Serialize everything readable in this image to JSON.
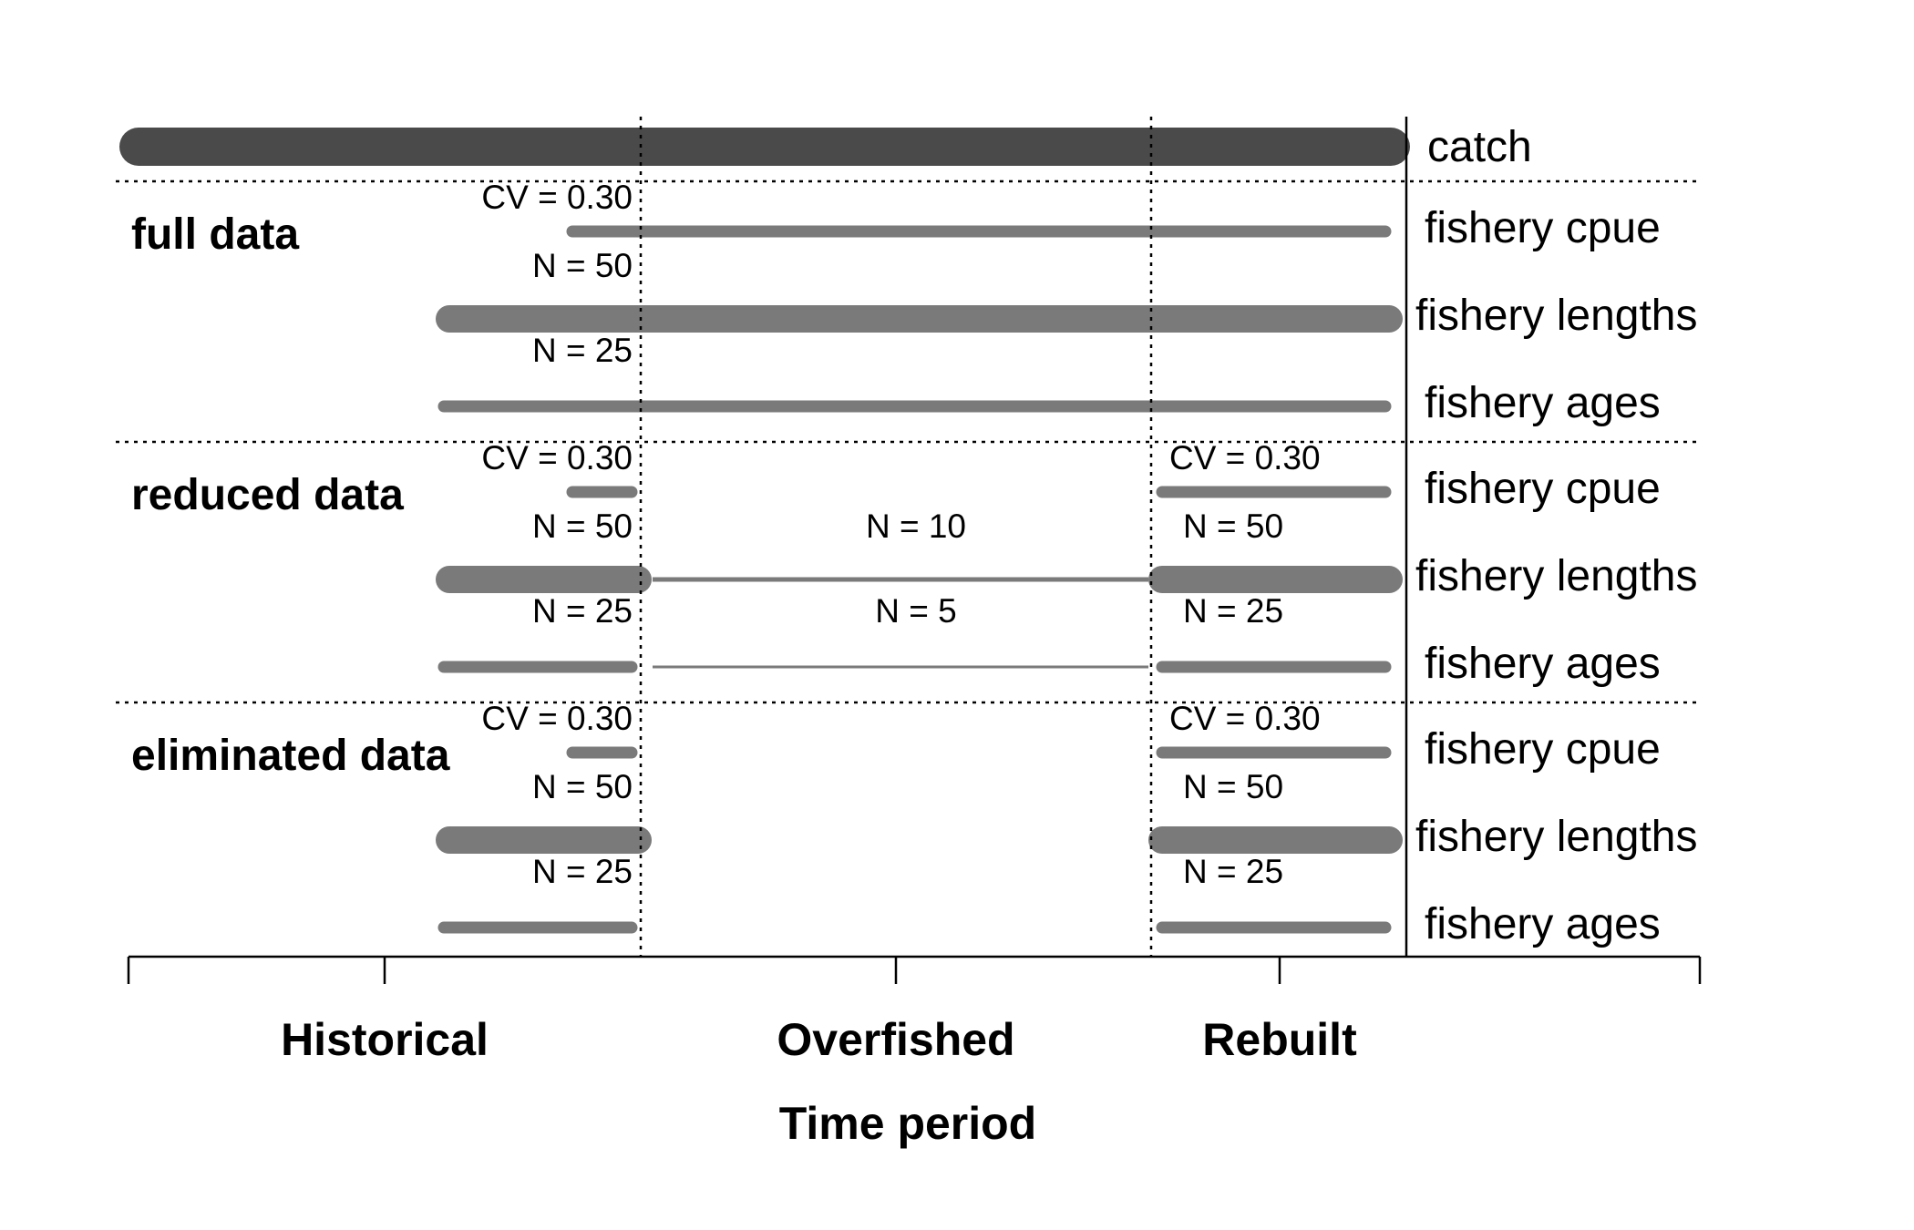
{
  "colors": {
    "catch_bar": "#4a4a4a",
    "data_bar": "#7a7a7a",
    "line": "#000000"
  },
  "catch_label": "catch",
  "periods": {
    "historical": "Historical",
    "overfished": "Overfished",
    "rebuilt": "Rebuilt"
  },
  "x_axis_title": "Time period",
  "scenarios": [
    {
      "title": "full data",
      "rows": [
        {
          "label": "fishery cpue",
          "segments": [
            {
              "period": "historical-overfished-rebuilt",
              "text": "CV = 0.30",
              "weight": "medium"
            }
          ]
        },
        {
          "label": "fishery lengths",
          "segments": [
            {
              "period": "historical-overfished-rebuilt",
              "text": "N = 50",
              "weight": "thick"
            }
          ]
        },
        {
          "label": "fishery ages",
          "segments": [
            {
              "period": "historical-overfished-rebuilt",
              "text": "N = 25",
              "weight": "medium"
            }
          ]
        }
      ]
    },
    {
      "title": "reduced data",
      "rows": [
        {
          "label": "fishery cpue",
          "segments": [
            {
              "period": "historical",
              "text": "CV = 0.30",
              "weight": "medium"
            },
            {
              "period": "rebuilt",
              "text": "CV = 0.30",
              "weight": "medium"
            }
          ]
        },
        {
          "label": "fishery lengths",
          "segments": [
            {
              "period": "historical",
              "text": "N = 50",
              "weight": "thick"
            },
            {
              "period": "overfished",
              "text": "N = 10",
              "weight": "thin"
            },
            {
              "period": "rebuilt",
              "text": "N = 50",
              "weight": "thick"
            }
          ]
        },
        {
          "label": "fishery ages",
          "segments": [
            {
              "period": "historical",
              "text": "N = 25",
              "weight": "medium"
            },
            {
              "period": "overfished",
              "text": "N = 5",
              "weight": "hairline"
            },
            {
              "period": "rebuilt",
              "text": "N = 25",
              "weight": "medium"
            }
          ]
        }
      ]
    },
    {
      "title": "eliminated data",
      "rows": [
        {
          "label": "fishery cpue",
          "segments": [
            {
              "period": "historical",
              "text": "CV = 0.30",
              "weight": "medium"
            },
            {
              "period": "rebuilt",
              "text": "CV = 0.30",
              "weight": "medium"
            }
          ]
        },
        {
          "label": "fishery lengths",
          "segments": [
            {
              "period": "historical",
              "text": "N = 50",
              "weight": "thick"
            },
            {
              "period": "rebuilt",
              "text": "N = 50",
              "weight": "thick"
            }
          ]
        },
        {
          "label": "fishery ages",
          "segments": [
            {
              "period": "historical",
              "text": "N = 25",
              "weight": "medium"
            },
            {
              "period": "rebuilt",
              "text": "N = 25",
              "weight": "medium"
            }
          ]
        }
      ]
    }
  ]
}
